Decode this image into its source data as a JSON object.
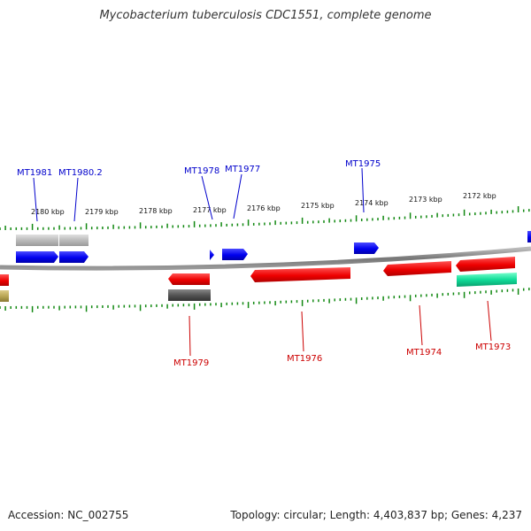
{
  "title": "Mycobacterium tuberculosis CDC1551, complete genome",
  "footer": {
    "accession": "Accession: NC_002755",
    "summary": "Topology: circular; Length: 4,403,837 bp; Genes: 4,237"
  },
  "colors": {
    "forward_gene": "#0000ee",
    "reverse_gene": "#ee0000",
    "forward_label": "#0000cc",
    "reverse_label": "#cc0000",
    "tick": "#118811",
    "backbone": "#888888",
    "feature_gray": "#bbbbbb",
    "feature_dark": "#555555",
    "feature_green": "#11dd99",
    "feature_olive": "#bba855"
  },
  "ruler": {
    "unit": "kbp",
    "labels": [
      "2180 kbp",
      "2179 kbp",
      "2178 kbp",
      "2177 kbp",
      "2176 kbp",
      "2175 kbp",
      "2174 kbp",
      "2173 kbp",
      "2172 kbp"
    ]
  },
  "genes": [
    {
      "id": "MT1981",
      "strand": "forward"
    },
    {
      "id": "MT1980.2",
      "strand": "forward"
    },
    {
      "id": "MT1978",
      "strand": "forward"
    },
    {
      "id": "MT1977",
      "strand": "forward"
    },
    {
      "id": "MT1975",
      "strand": "forward"
    },
    {
      "id": "MT1979",
      "strand": "reverse"
    },
    {
      "id": "MT1976",
      "strand": "reverse"
    },
    {
      "id": "MT1974",
      "strand": "reverse"
    },
    {
      "id": "MT1973",
      "strand": "reverse"
    }
  ]
}
